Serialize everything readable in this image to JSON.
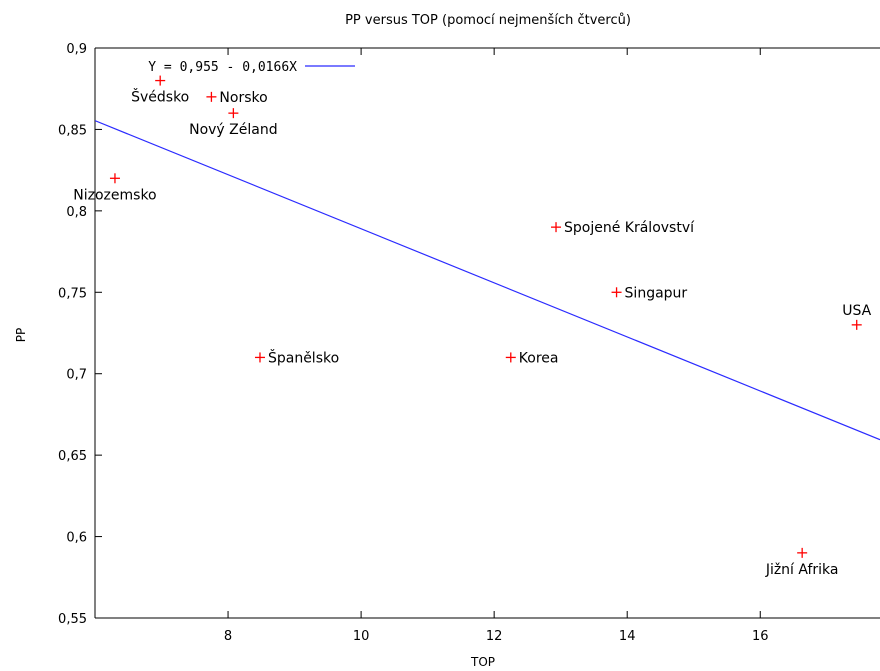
{
  "chart_data": {
    "type": "scatter",
    "title": "PP versus TOP (pomocí nejmenších čtverců)",
    "xlabel": "TOP",
    "ylabel": "PP",
    "xlim": [
      6,
      17.8
    ],
    "ylim": [
      0.55,
      0.9
    ],
    "x_ticks": [
      8,
      10,
      12,
      14,
      16
    ],
    "x_tick_labels": [
      "8",
      "10",
      "12",
      "14",
      "16"
    ],
    "y_ticks": [
      0.55,
      0.6,
      0.65,
      0.7,
      0.75,
      0.8,
      0.85,
      0.9
    ],
    "y_tick_labels": [
      "0,55",
      "0,6",
      "0,65",
      "0,7",
      "0,75",
      "0,8",
      "0,85",
      "0,9"
    ],
    "grid": false,
    "legend_position": "top-left",
    "points": [
      {
        "label": "Švédsko",
        "x": 6.98,
        "y": 0.88,
        "label_pos": "below"
      },
      {
        "label": "Norsko",
        "x": 7.75,
        "y": 0.87,
        "label_pos": "right"
      },
      {
        "label": "Nový Zéland",
        "x": 8.08,
        "y": 0.86,
        "label_pos": "below"
      },
      {
        "label": "Nizozemsko",
        "x": 6.3,
        "y": 0.82,
        "label_pos": "below"
      },
      {
        "label": "Spojené Království",
        "x": 12.93,
        "y": 0.79,
        "label_pos": "right"
      },
      {
        "label": "Singapur",
        "x": 13.84,
        "y": 0.75,
        "label_pos": "right"
      },
      {
        "label": "USA",
        "x": 17.45,
        "y": 0.73,
        "label_pos": "above"
      },
      {
        "label": "Španělsko",
        "x": 8.48,
        "y": 0.71,
        "label_pos": "right"
      },
      {
        "label": "Korea",
        "x": 12.25,
        "y": 0.71,
        "label_pos": "right"
      },
      {
        "label": "Jižní Afrika",
        "x": 16.63,
        "y": 0.59,
        "label_pos": "below"
      }
    ],
    "fit_line": {
      "label": "Y = 0,955 - 0,0166X",
      "intercept": 0.955,
      "slope": -0.0166,
      "color": "#2b2bff"
    },
    "point_color": "#ff0000"
  }
}
